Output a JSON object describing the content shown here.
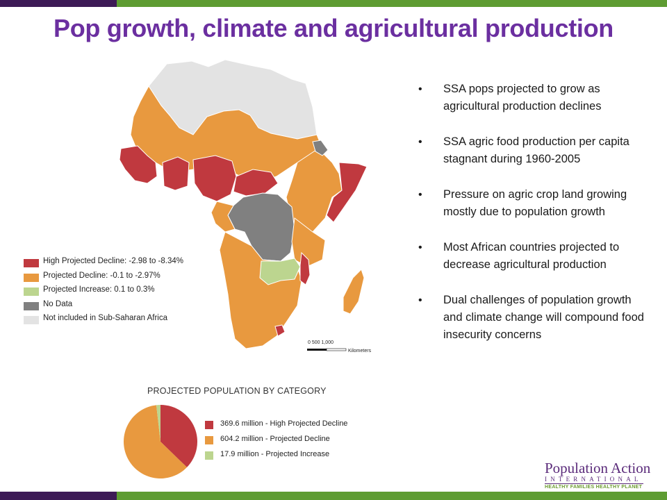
{
  "title": "Pop growth, climate and agricultural production",
  "bullets": [
    "SSA pops projected to grow as agricultural production declines",
    "SSA agric food production per capita stagnant during 1960-2005",
    "Pressure on agric crop land growing mostly due to population growth",
    "Most African countries projected to decrease agricultural production",
    "Dual challenges of population growth and climate change will compound food insecurity concerns"
  ],
  "map_legend": [
    {
      "label": "High Projected Decline: -2.98 to -8.34%",
      "color": "#c0393f"
    },
    {
      "label": "Projected Decline: -0.1 to -2.97%",
      "color": "#e8993f"
    },
    {
      "label": "Projected Increase: 0.1 to 0.3%",
      "color": "#bcd58f"
    },
    {
      "label": "No Data",
      "color": "#808080"
    },
    {
      "label": "Not included in Sub-Saharan Africa",
      "color": "#e3e3e3"
    }
  ],
  "scale_bar": {
    "ticks": "0      500   1,000",
    "unit": "Kilometers"
  },
  "pie": {
    "title": "PROJECTED POPULATION BY CATEGORY",
    "slices": [
      {
        "label": "369.6 million - High Projected Decline",
        "value": 369.6,
        "color": "#c0393f"
      },
      {
        "label": "604.2 million - Projected Decline",
        "value": 604.2,
        "color": "#e8993f"
      },
      {
        "label": "17.9 million - Projected Increase",
        "value": 17.9,
        "color": "#bcd58f"
      }
    ]
  },
  "brand": {
    "name": "Population Action",
    "intl": "INTERNATIONAL",
    "tagline": "HEALTHY FAMILIES HEALTHY PLANET"
  },
  "colors": {
    "title": "#6b2fa0",
    "bar_dark": "#3d1a56",
    "bar_green": "#5e9c32"
  }
}
